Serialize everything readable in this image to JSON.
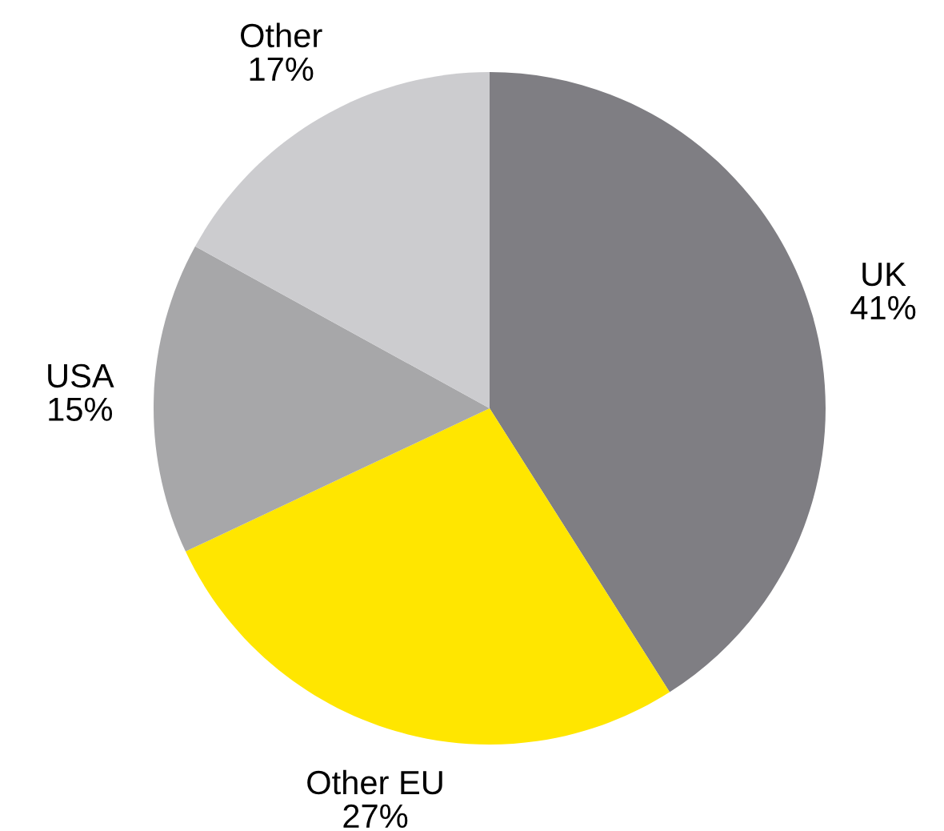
{
  "chart_data": {
    "type": "pie",
    "categories": [
      "UK",
      "Other EU",
      "USA",
      "Other"
    ],
    "values": [
      41,
      27,
      15,
      17
    ],
    "colors": [
      "#7f7e83",
      "#ffe600",
      "#a7a7a9",
      "#cccccf"
    ],
    "value_labels": [
      "41%",
      "27%",
      "15%",
      "17%"
    ]
  }
}
